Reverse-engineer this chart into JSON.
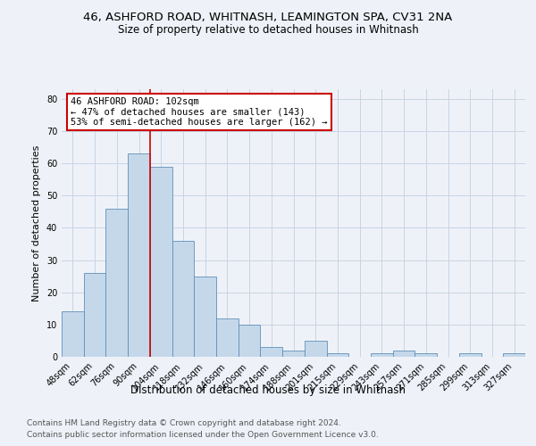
{
  "title1": "46, ASHFORD ROAD, WHITNASH, LEAMINGTON SPA, CV31 2NA",
  "title2": "Size of property relative to detached houses in Whitnash",
  "xlabel": "Distribution of detached houses by size in Whitnash",
  "ylabel": "Number of detached properties",
  "categories": [
    "48sqm",
    "62sqm",
    "76sqm",
    "90sqm",
    "104sqm",
    "118sqm",
    "132sqm",
    "146sqm",
    "160sqm",
    "174sqm",
    "188sqm",
    "201sqm",
    "215sqm",
    "229sqm",
    "243sqm",
    "257sqm",
    "271sqm",
    "285sqm",
    "299sqm",
    "313sqm",
    "327sqm"
  ],
  "values": [
    14,
    26,
    46,
    63,
    59,
    36,
    25,
    12,
    10,
    3,
    2,
    5,
    1,
    0,
    1,
    2,
    1,
    0,
    1,
    0,
    1
  ],
  "bar_color": "#c5d8ea",
  "bar_edge_color": "#6090b8",
  "vline_color": "#cc0000",
  "annotation_line1": "46 ASHFORD ROAD: 102sqm",
  "annotation_line2": "← 47% of detached houses are smaller (143)",
  "annotation_line3": "53% of semi-detached houses are larger (162) →",
  "annotation_box_facecolor": "#ffffff",
  "annotation_box_edgecolor": "#cc0000",
  "ylim_max": 83,
  "yticks": [
    0,
    10,
    20,
    30,
    40,
    50,
    60,
    70,
    80
  ],
  "grid_color": "#c8d4e4",
  "background_color": "#eef2f8",
  "footer1": "Contains HM Land Registry data © Crown copyright and database right 2024.",
  "footer2": "Contains public sector information licensed under the Open Government Licence v3.0.",
  "title1_fontsize": 9.5,
  "title2_fontsize": 8.5,
  "tick_fontsize": 7,
  "ylabel_fontsize": 8,
  "xlabel_fontsize": 8.5,
  "annotation_fontsize": 7.5,
  "footer_fontsize": 6.5
}
